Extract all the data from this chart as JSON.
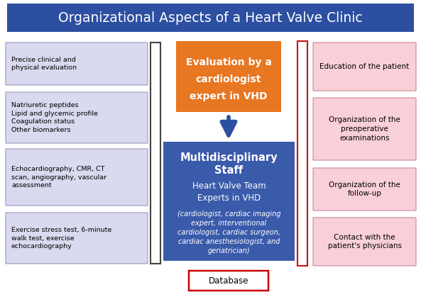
{
  "title": "Organizational Aspects of a Heart Valve Clinic",
  "title_bg": "#2d4fa1",
  "title_color": "white",
  "title_fontsize": 13,
  "left_boxes": [
    "Precise clinical and\nphysical evaluation",
    "Natriuretic peptides\nLipid and glycemic profile\nCoagulation status\nOther biomarkers",
    "Echocardiography, CMR, CT\nscan, angiography, vascular\nassessment",
    "Exercise stress test, 6-minute\nwalk test, exercise\nechocardiography"
  ],
  "left_box_color": "#d9d9f0",
  "left_box_edge": "#9999bb",
  "center_top_text_line1": "Evaluation by a",
  "center_top_text_line2": "cardiologist",
  "center_top_text_line3": "expert in VHD",
  "center_top_color": "#e87722",
  "center_top_text_color": "white",
  "center_main_bold1": "Multidisciplinary",
  "center_main_bold2": "Staff",
  "center_main_reg1": "Heart Valve Team",
  "center_main_reg2": "Experts in VHD",
  "center_main_italic": "(cardiologist, cardiac imaging\nexpert, interventional\ncardiologist, cardiac surgeon,\ncardiac anesthesiologist, and\ngeriatrician)",
  "center_main_color": "#3a5aaa",
  "center_main_text_color": "white",
  "database_text": "Database",
  "database_box_color": "white",
  "database_box_edge": "#cc0000",
  "right_boxes": [
    "Education of the patient",
    "Organization of the\npreoperative\nexaminations",
    "Organization of the\nfollow-up",
    "Contact with the\npatient's physicians"
  ],
  "right_box_color": "#f9d0d8",
  "right_box_edge": "#cc8899",
  "arrow_down_color": "#2d4fa1",
  "arrow_right_color": "#cc1111",
  "bracket_color": "#444444",
  "right_bracket_color": "#cc1111",
  "bg_color": "white"
}
